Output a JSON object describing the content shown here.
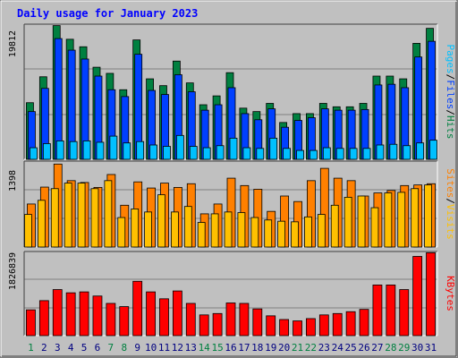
{
  "title": "Daily usage for January 2023",
  "colors": {
    "background": "#c0c0c0",
    "title": "#0000ff",
    "hits": "#008040",
    "files": "#0040ff",
    "pages": "#00c0ff",
    "visits": "#ff8000",
    "sites": "#ffc000",
    "kbytes": "#ff0000",
    "weekday_label": "#000080",
    "weekend_label": "#008040"
  },
  "chart_data": [
    {
      "type": "bar",
      "name": "hits-files-pages",
      "legend": {
        "pages": "Pages",
        "files": "Files",
        "hits": "Hits",
        "separator": "/"
      },
      "y_max_label": "19812",
      "ylim": [
        0,
        19812
      ],
      "categories": [
        "1",
        "2",
        "3",
        "4",
        "5",
        "6",
        "7",
        "8",
        "9",
        "10",
        "11",
        "12",
        "13",
        "14",
        "15",
        "16",
        "17",
        "18",
        "19",
        "20",
        "21",
        "22",
        "23",
        "24",
        "25",
        "26",
        "27",
        "28",
        "29",
        "30",
        "31"
      ],
      "weekend_days": [
        "1",
        "7",
        "8",
        "14",
        "15",
        "21",
        "22",
        "28",
        "29"
      ],
      "series": [
        {
          "name": "Hits",
          "values": [
            8300,
            12100,
            19600,
            17600,
            16500,
            13500,
            12600,
            10200,
            17500,
            11800,
            10800,
            14400,
            11200,
            8000,
            9300,
            12700,
            7500,
            7000,
            8200,
            5400,
            6700,
            6700,
            8200,
            7700,
            7700,
            8200,
            12200,
            12200,
            11800,
            17000,
            19200
          ]
        },
        {
          "name": "Files",
          "values": [
            7000,
            10400,
            17700,
            16000,
            14700,
            12200,
            10200,
            9200,
            15400,
            10100,
            9500,
            12400,
            9900,
            7200,
            8000,
            10500,
            6700,
            5800,
            7400,
            4700,
            5700,
            6100,
            7400,
            7200,
            7200,
            7300,
            10900,
            11000,
            10500,
            15000,
            17300
          ]
        },
        {
          "name": "Pages",
          "values": [
            1700,
            2300,
            2700,
            2600,
            2700,
            2500,
            3400,
            2400,
            2600,
            2100,
            1900,
            3500,
            1900,
            1700,
            2000,
            3100,
            1700,
            1600,
            3100,
            1600,
            1300,
            1300,
            1700,
            1600,
            1600,
            1600,
            2100,
            2200,
            2000,
            2400,
            2800
          ]
        }
      ]
    },
    {
      "type": "bar",
      "name": "visits-sites",
      "legend": {
        "sites": "Sites",
        "visits": "Visits",
        "separator": "/"
      },
      "y_max_label": "1398",
      "ylim": [
        0,
        1398
      ],
      "series": [
        {
          "name": "Visits",
          "values": [
            700,
            975,
            1350,
            1080,
            1050,
            970,
            1180,
            680,
            1060,
            960,
            1040,
            970,
            1030,
            540,
            700,
            1120,
            1000,
            940,
            580,
            830,
            740,
            1080,
            1280,
            1120,
            1080,
            830,
            880,
            920,
            1000,
            1010,
            1030
          ]
        },
        {
          "name": "Sites",
          "values": [
            530,
            760,
            950,
            1040,
            1040,
            950,
            1080,
            480,
            620,
            570,
            850,
            570,
            660,
            400,
            540,
            570,
            560,
            480,
            440,
            420,
            410,
            490,
            530,
            680,
            810,
            830,
            640,
            880,
            890,
            950,
            1010
          ]
        }
      ]
    },
    {
      "type": "bar",
      "name": "kbytes",
      "legend": {
        "kbytes": "KBytes"
      },
      "y_max_label": "1826839",
      "ylim": [
        0,
        1826839
      ],
      "series": [
        {
          "name": "KBytes",
          "values": [
            560000,
            760000,
            1000000,
            930000,
            950000,
            860000,
            700000,
            630000,
            1180000,
            950000,
            800000,
            970000,
            700000,
            450000,
            480000,
            710000,
            700000,
            580000,
            430000,
            350000,
            320000,
            370000,
            450000,
            480000,
            520000,
            570000,
            1100000,
            1100000,
            1000000,
            1720000,
            1800000
          ]
        }
      ]
    }
  ]
}
